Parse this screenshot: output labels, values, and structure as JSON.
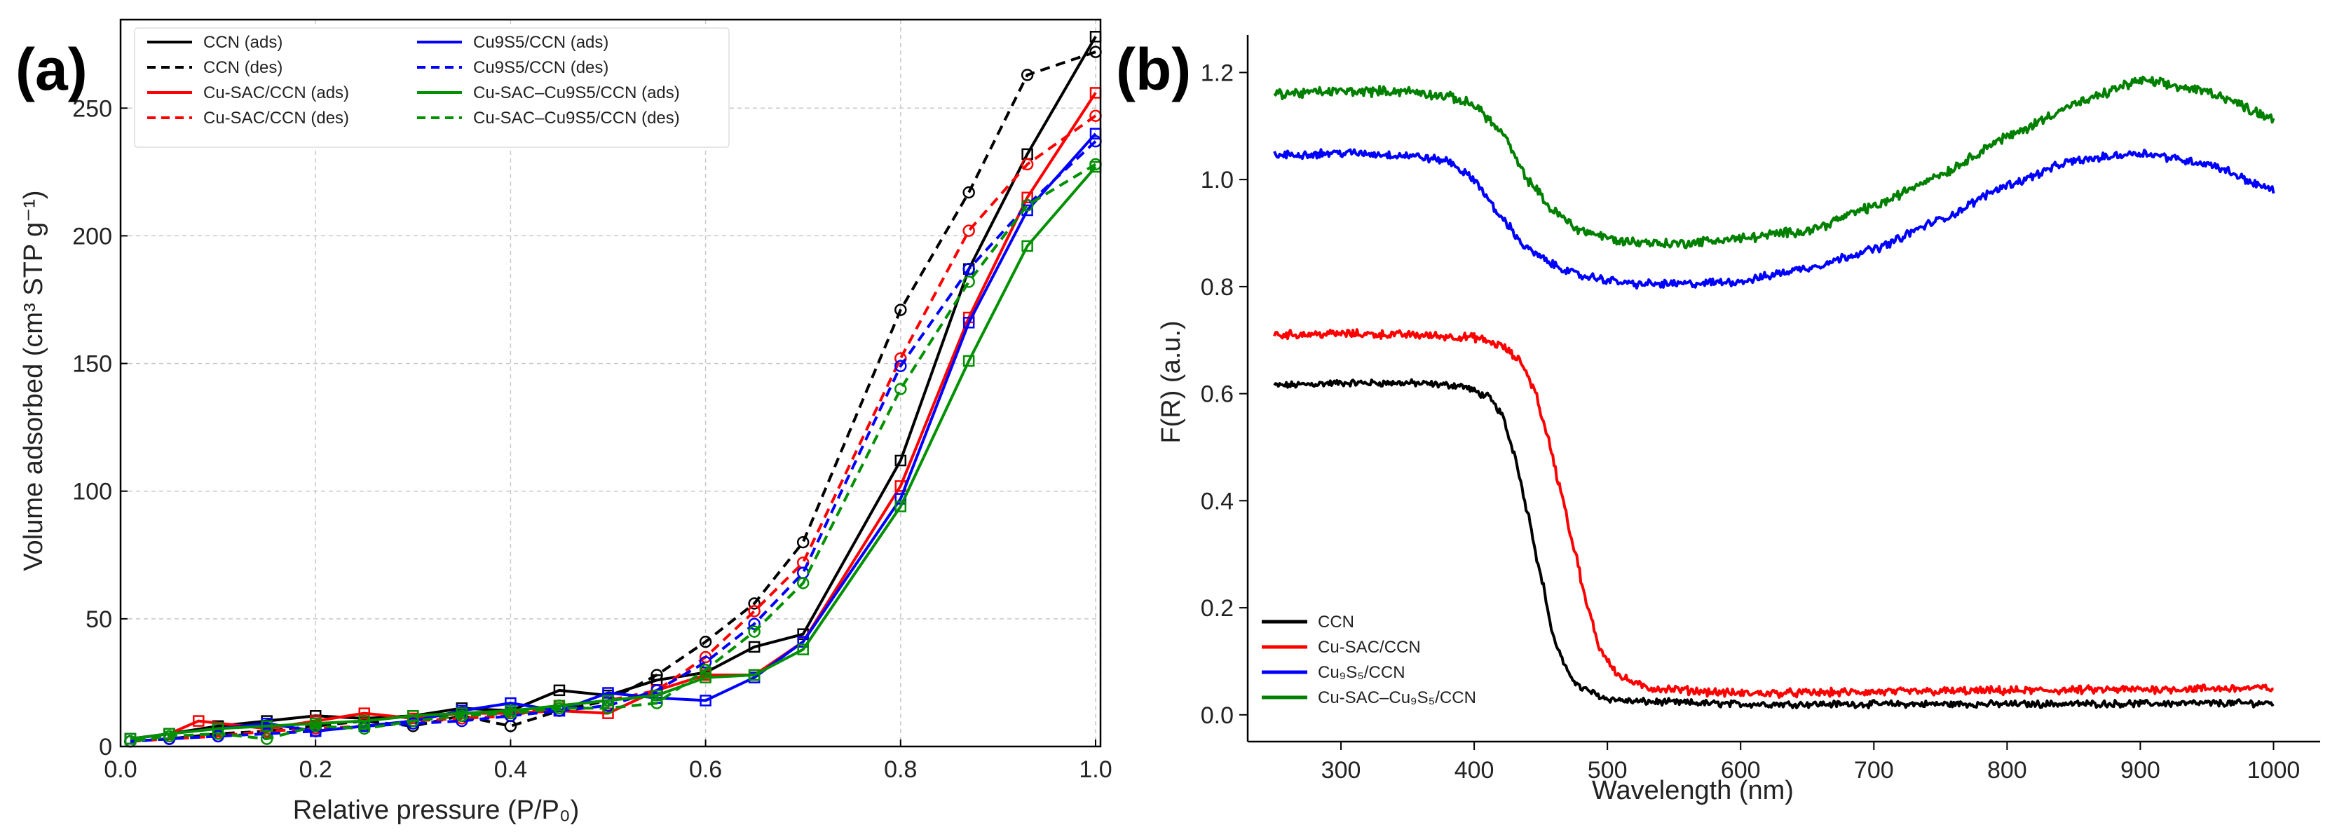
{
  "panels": {
    "a": {
      "label": "(a)"
    },
    "b": {
      "label": "(b)"
    }
  },
  "chart_data": [
    {
      "type": "line",
      "panel": "(a)",
      "xlabel": "Relative pressure (P/P₀)",
      "ylabel": "Volume adsorbed (cm³ STP g⁻¹)",
      "xlim": [
        0.0,
        1.0
      ],
      "ylim": [
        0,
        280
      ],
      "xticks": [
        "0.0",
        "0.2",
        "0.4",
        "0.6",
        "0.8",
        "1.0"
      ],
      "yticks": [
        "0",
        "50",
        "100",
        "150",
        "200",
        "250"
      ],
      "grid": true,
      "legend_position": "top-left",
      "series": [
        {
          "name": "CCN (ads)",
          "color": "#000000",
          "style": "solid",
          "marker": "square",
          "points": [
            [
              0.01,
              3
            ],
            [
              0.05,
              5
            ],
            [
              0.1,
              8
            ],
            [
              0.15,
              10
            ],
            [
              0.2,
              12
            ],
            [
              0.25,
              11
            ],
            [
              0.3,
              12
            ],
            [
              0.35,
              15
            ],
            [
              0.4,
              14
            ],
            [
              0.45,
              22
            ],
            [
              0.5,
              20
            ],
            [
              0.55,
              26
            ],
            [
              0.6,
              29
            ],
            [
              0.65,
              39
            ],
            [
              0.7,
              44
            ],
            [
              0.8,
              112
            ],
            [
              0.87,
              187
            ],
            [
              0.93,
              232
            ],
            [
              1.0,
              278
            ]
          ]
        },
        {
          "name": "CCN (des)",
          "color": "#000000",
          "style": "dashed",
          "marker": "circle",
          "points": [
            [
              1.0,
              272
            ],
            [
              0.93,
              263
            ],
            [
              0.87,
              217
            ],
            [
              0.8,
              171
            ],
            [
              0.7,
              80
            ],
            [
              0.65,
              56
            ],
            [
              0.6,
              41
            ],
            [
              0.55,
              28
            ],
            [
              0.5,
              18
            ],
            [
              0.45,
              14
            ],
            [
              0.4,
              8
            ],
            [
              0.35,
              12
            ],
            [
              0.3,
              8
            ],
            [
              0.25,
              10
            ],
            [
              0.2,
              8
            ],
            [
              0.15,
              6
            ],
            [
              0.1,
              5
            ],
            [
              0.05,
              3
            ],
            [
              0.01,
              2
            ]
          ]
        },
        {
          "name": "Cu-SAC/CCN (ads)",
          "color": "#ff0000",
          "style": "solid",
          "marker": "square",
          "points": [
            [
              0.01,
              3
            ],
            [
              0.05,
              5
            ],
            [
              0.08,
              10
            ],
            [
              0.15,
              7
            ],
            [
              0.2,
              10
            ],
            [
              0.25,
              13
            ],
            [
              0.3,
              11
            ],
            [
              0.35,
              13
            ],
            [
              0.4,
              13
            ],
            [
              0.45,
              14
            ],
            [
              0.5,
              13
            ],
            [
              0.55,
              22
            ],
            [
              0.6,
              28
            ],
            [
              0.65,
              28
            ],
            [
              0.7,
              41
            ],
            [
              0.8,
              102
            ],
            [
              0.87,
              168
            ],
            [
              0.93,
              215
            ],
            [
              1.0,
              256
            ]
          ]
        },
        {
          "name": "Cu-SAC/CCN (des)",
          "color": "#ff0000",
          "style": "dashed",
          "marker": "circle",
          "points": [
            [
              1.0,
              247
            ],
            [
              0.93,
              228
            ],
            [
              0.87,
              202
            ],
            [
              0.8,
              152
            ],
            [
              0.7,
              72
            ],
            [
              0.65,
              53
            ],
            [
              0.6,
              35
            ],
            [
              0.55,
              22
            ],
            [
              0.5,
              18
            ],
            [
              0.45,
              16
            ],
            [
              0.4,
              12
            ],
            [
              0.35,
              11
            ],
            [
              0.3,
              10
            ],
            [
              0.25,
              8
            ],
            [
              0.2,
              7
            ],
            [
              0.15,
              6
            ],
            [
              0.1,
              4
            ],
            [
              0.05,
              3
            ],
            [
              0.01,
              2
            ]
          ]
        },
        {
          "name": "Cu9S5/CCN (ads)",
          "color": "#0000ff",
          "style": "solid",
          "marker": "square",
          "points": [
            [
              0.01,
              3
            ],
            [
              0.05,
              5
            ],
            [
              0.1,
              7
            ],
            [
              0.15,
              9
            ],
            [
              0.2,
              6
            ],
            [
              0.25,
              8
            ],
            [
              0.3,
              10
            ],
            [
              0.35,
              14
            ],
            [
              0.4,
              17
            ],
            [
              0.45,
              14
            ],
            [
              0.5,
              21
            ],
            [
              0.55,
              19
            ],
            [
              0.6,
              18
            ],
            [
              0.65,
              27
            ],
            [
              0.7,
              41
            ],
            [
              0.8,
              97
            ],
            [
              0.87,
              166
            ],
            [
              0.93,
              210
            ],
            [
              1.0,
              240
            ]
          ]
        },
        {
          "name": "Cu9S5/CCN (des)",
          "color": "#0000ff",
          "style": "dashed",
          "marker": "circle",
          "points": [
            [
              1.0,
              237
            ],
            [
              0.93,
              212
            ],
            [
              0.87,
              187
            ],
            [
              0.8,
              149
            ],
            [
              0.7,
              68
            ],
            [
              0.65,
              48
            ],
            [
              0.6,
              33
            ],
            [
              0.55,
              22
            ],
            [
              0.5,
              16
            ],
            [
              0.45,
              14
            ],
            [
              0.4,
              12
            ],
            [
              0.35,
              10
            ],
            [
              0.3,
              9
            ],
            [
              0.25,
              8
            ],
            [
              0.2,
              6
            ],
            [
              0.15,
              5
            ],
            [
              0.1,
              4
            ],
            [
              0.05,
              3
            ],
            [
              0.01,
              2
            ]
          ]
        },
        {
          "name": "Cu-SAC–Cu9S5/CCN (ads)",
          "color": "#009000",
          "style": "solid",
          "marker": "square",
          "points": [
            [
              0.01,
              3
            ],
            [
              0.05,
              5
            ],
            [
              0.1,
              7
            ],
            [
              0.15,
              8
            ],
            [
              0.2,
              9
            ],
            [
              0.25,
              10
            ],
            [
              0.3,
              12
            ],
            [
              0.35,
              13
            ],
            [
              0.4,
              14
            ],
            [
              0.45,
              16
            ],
            [
              0.5,
              18
            ],
            [
              0.55,
              20
            ],
            [
              0.6,
              27
            ],
            [
              0.65,
              28
            ],
            [
              0.7,
              38
            ],
            [
              0.8,
              94
            ],
            [
              0.87,
              151
            ],
            [
              0.93,
              196
            ],
            [
              1.0,
              227
            ]
          ]
        },
        {
          "name": "Cu-SAC–Cu9S5/CCN (des)",
          "color": "#009000",
          "style": "dashed",
          "marker": "circle",
          "points": [
            [
              1.0,
              228
            ],
            [
              0.93,
              212
            ],
            [
              0.87,
              182
            ],
            [
              0.8,
              140
            ],
            [
              0.7,
              64
            ],
            [
              0.65,
              45
            ],
            [
              0.6,
              30
            ],
            [
              0.55,
              17
            ],
            [
              0.5,
              15
            ],
            [
              0.45,
              15
            ],
            [
              0.4,
              13
            ],
            [
              0.35,
              12
            ],
            [
              0.3,
              10
            ],
            [
              0.25,
              7
            ],
            [
              0.2,
              8
            ],
            [
              0.15,
              3
            ],
            [
              0.1,
              5
            ],
            [
              0.05,
              4
            ],
            [
              0.01,
              2
            ]
          ]
        }
      ]
    },
    {
      "type": "line",
      "panel": "(b)",
      "xlabel": "Wavelength (nm)",
      "ylabel": "F(R) (a.u.)",
      "xlim": [
        230,
        1035
      ],
      "ylim": [
        -0.05,
        1.27
      ],
      "xticks": [
        "300",
        "400",
        "500",
        "600",
        "700",
        "800",
        "900",
        "1000"
      ],
      "yticks": [
        "0.0",
        "0.2",
        "0.4",
        "0.6",
        "0.8",
        "1.0",
        "1.2"
      ],
      "grid": false,
      "legend_position": "bottom-left",
      "series": [
        {
          "name": "CCN",
          "color": "#000000",
          "noise": 0.005,
          "points": [
            [
              250,
              0.615
            ],
            [
              300,
              0.62
            ],
            [
              350,
              0.62
            ],
            [
              390,
              0.615
            ],
            [
              410,
              0.595
            ],
            [
              420,
              0.565
            ],
            [
              430,
              0.49
            ],
            [
              440,
              0.38
            ],
            [
              450,
              0.26
            ],
            [
              460,
              0.14
            ],
            [
              470,
              0.08
            ],
            [
              480,
              0.05
            ],
            [
              500,
              0.03
            ],
            [
              520,
              0.025
            ],
            [
              600,
              0.02
            ],
            [
              800,
              0.02
            ],
            [
              1000,
              0.022
            ]
          ]
        },
        {
          "name": "Cu-SAC/CCN",
          "color": "#ff0000",
          "noise": 0.006,
          "points": [
            [
              250,
              0.71
            ],
            [
              300,
              0.712
            ],
            [
              350,
              0.71
            ],
            [
              400,
              0.705
            ],
            [
              420,
              0.69
            ],
            [
              435,
              0.66
            ],
            [
              445,
              0.61
            ],
            [
              455,
              0.52
            ],
            [
              465,
              0.42
            ],
            [
              475,
              0.31
            ],
            [
              485,
              0.2
            ],
            [
              495,
              0.12
            ],
            [
              510,
              0.07
            ],
            [
              530,
              0.05
            ],
            [
              600,
              0.04
            ],
            [
              800,
              0.045
            ],
            [
              1000,
              0.05
            ]
          ]
        },
        {
          "name": "Cu₉S₅/CCN",
          "color": "#0000ff",
          "noise": 0.006,
          "points": [
            [
              250,
              1.045
            ],
            [
              300,
              1.05
            ],
            [
              350,
              1.045
            ],
            [
              380,
              1.035
            ],
            [
              400,
              1.0
            ],
            [
              420,
              0.93
            ],
            [
              440,
              0.87
            ],
            [
              460,
              0.84
            ],
            [
              480,
              0.82
            ],
            [
              520,
              0.805
            ],
            [
              560,
              0.805
            ],
            [
              600,
              0.81
            ],
            [
              650,
              0.835
            ],
            [
              700,
              0.87
            ],
            [
              750,
              0.925
            ],
            [
              800,
              0.99
            ],
            [
              850,
              1.035
            ],
            [
              900,
              1.05
            ],
            [
              950,
              1.03
            ],
            [
              1000,
              0.98
            ]
          ]
        },
        {
          "name": "Cu-SAC–Cu₉S₅/CCN",
          "color": "#008000",
          "noise": 0.007,
          "points": [
            [
              250,
              1.16
            ],
            [
              300,
              1.165
            ],
            [
              350,
              1.165
            ],
            [
              380,
              1.155
            ],
            [
              400,
              1.14
            ],
            [
              420,
              1.09
            ],
            [
              440,
              1.0
            ],
            [
              460,
              0.94
            ],
            [
              480,
              0.905
            ],
            [
              510,
              0.885
            ],
            [
              550,
              0.88
            ],
            [
              600,
              0.89
            ],
            [
              650,
              0.905
            ],
            [
              700,
              0.95
            ],
            [
              750,
              1.01
            ],
            [
              800,
              1.08
            ],
            [
              850,
              1.14
            ],
            [
              900,
              1.185
            ],
            [
              950,
              1.165
            ],
            [
              1000,
              1.115
            ]
          ]
        }
      ]
    }
  ]
}
